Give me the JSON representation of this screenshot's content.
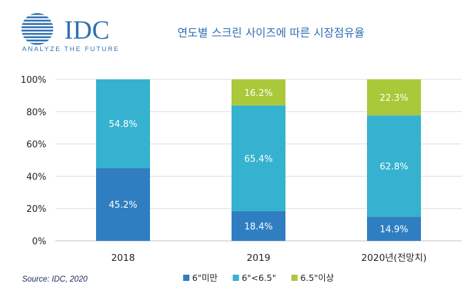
{
  "logo": {
    "name": "IDC",
    "tagline": "ANALYZE THE FUTURE",
    "color": "#2e6fb2"
  },
  "source": "Source: IDC, 2020",
  "chart_data": {
    "type": "bar",
    "stacked": true,
    "title": "연도별 스크린 사이즈에 따른 시장점유율",
    "categories": [
      "2018",
      "2019",
      "2020년(전망치)"
    ],
    "yticks": [
      "0%",
      "20%",
      "40%",
      "60%",
      "80%",
      "100%"
    ],
    "ylim": [
      0,
      100
    ],
    "grid": true,
    "legend_position": "bottom",
    "series": [
      {
        "name": "6\"미만",
        "color": "#2f7ec1",
        "values": [
          45.2,
          18.4,
          14.9
        ],
        "labels": [
          "45.2%",
          "18.4%",
          "14.9%"
        ]
      },
      {
        "name": "6\"<6.5\"",
        "color": "#35b2cf",
        "values": [
          54.8,
          65.4,
          62.8
        ],
        "labels": [
          "54.8%",
          "65.4%",
          "62.8%"
        ]
      },
      {
        "name": "6.5\"이상",
        "color": "#a9c83a",
        "values": [
          0,
          16.2,
          22.3
        ],
        "labels": [
          "",
          "16.2%",
          "22.3%"
        ]
      }
    ]
  }
}
